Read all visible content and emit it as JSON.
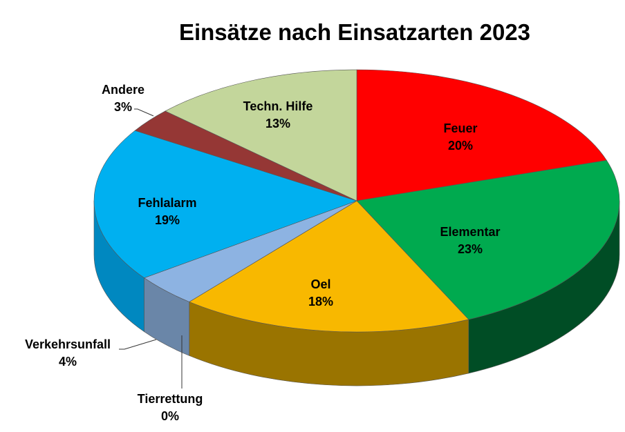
{
  "chart_data": {
    "type": "pie",
    "title": "Einsätze nach Einsatzarten 2023",
    "three_d": true,
    "legend": "none",
    "slices": [
      {
        "label": "Feuer",
        "value": 20,
        "display": "20%",
        "color": "#ff0000",
        "side_color": "#a00000"
      },
      {
        "label": "Elementar",
        "value": 23,
        "display": "23%",
        "color": "#00aa4f",
        "side_color": "#004d25"
      },
      {
        "label": "Oel",
        "value": 18,
        "display": "18%",
        "color": "#f8b800",
        "side_color": "#9a7400"
      },
      {
        "label": "Tierrettung",
        "value": 0,
        "display": "0%",
        "color": "#d8d8d8",
        "side_color": "#888888"
      },
      {
        "label": "Verkehrsunfall",
        "value": 4,
        "display": "4%",
        "color": "#8db3e2",
        "side_color": "#6a86a8"
      },
      {
        "label": "Fehlalarm",
        "value": 19,
        "display": "19%",
        "color": "#00b0f0",
        "side_color": "#0088c0"
      },
      {
        "label": "Andere",
        "value": 3,
        "display": "3%",
        "color": "#953735",
        "side_color": "#5a1f1e"
      },
      {
        "label": "Techn. Hilfe",
        "value": 13,
        "display": "13%",
        "color": "#c3d69b",
        "side_color": "#8a9a68"
      }
    ]
  }
}
